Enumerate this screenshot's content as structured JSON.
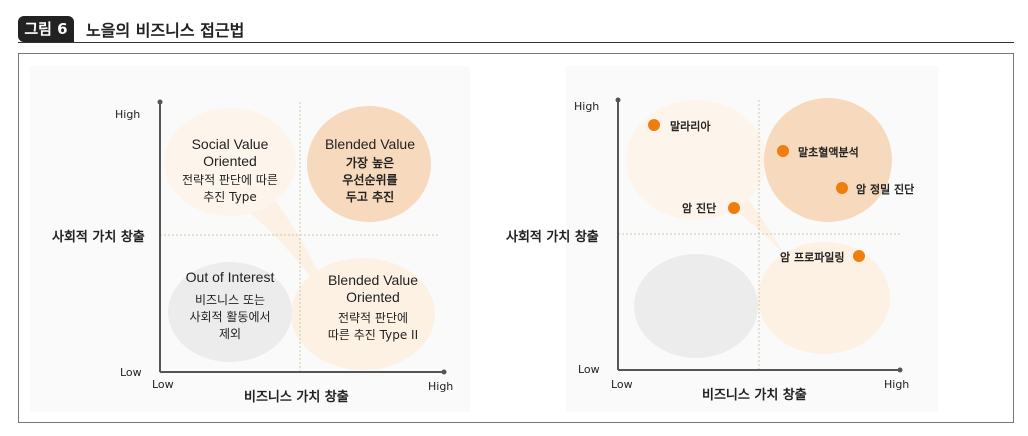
{
  "header": {
    "badge": "그림 6",
    "title": "노을의 비즈니스 접근법"
  },
  "left": {
    "y_high": "High",
    "y_low": "Low",
    "x_low": "Low",
    "x_high": "High",
    "y_axis_label": "사회적 가치 창출",
    "x_axis_label": "비즈니스 가치 창출",
    "quadrants": {
      "top_left": {
        "title_1": "Social Value",
        "title_2": "Oriented",
        "desc_1": "전략적 판단에 따른",
        "desc_2": "추진 Type"
      },
      "top_right": {
        "title_1": "Blended Value",
        "desc_1": "가장 높은",
        "desc_2": "우선순위를",
        "desc_3": "두고 추진"
      },
      "bottom_left": {
        "title_1": "Out of Interest",
        "desc_1": "비즈니스 또는",
        "desc_2": "사회적 활동에서",
        "desc_3": "제외"
      },
      "bottom_right": {
        "title_1": "Blended Value",
        "title_2": "Oriented",
        "desc_1": "전략적 판단에",
        "desc_2": "따른 추진 Type II"
      }
    }
  },
  "right": {
    "y_high": "High",
    "y_low": "Low",
    "x_low": "Low",
    "x_high": "High",
    "y_axis_label": "사회적 가치 창출",
    "x_axis_label": "비즈니스 가치 창출",
    "point_color": "#ef7e0e",
    "points": [
      "말라리아",
      "말초혈액분석",
      "암 정밀 진단",
      "암 진단",
      "암 프로파일링"
    ]
  }
}
